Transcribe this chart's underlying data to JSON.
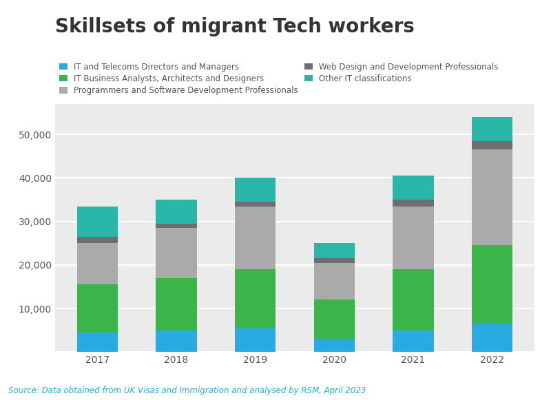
{
  "title": "Skillsets of migrant Tech workers",
  "years": [
    "2017",
    "2018",
    "2019",
    "2020",
    "2021",
    "2022"
  ],
  "categories": [
    "IT and Telecoms Directors and Managers",
    "IT Business Analysts, Architects and Designers",
    "Programmers and Software Development Professionals",
    "Web Design and Development Professionals",
    "Other IT classifications"
  ],
  "colors": [
    "#29ABE2",
    "#39B54A",
    "#AAAAAA",
    "#6D6E71",
    "#29B5A8"
  ],
  "values": {
    "IT and Telecoms Directors and Managers": [
      4500,
      5000,
      5500,
      3000,
      5000,
      6500
    ],
    "IT Business Analysts, Architects and Designers": [
      11000,
      12000,
      13500,
      9000,
      14000,
      18000
    ],
    "Programmers and Software Development Professionals": [
      9500,
      11500,
      14500,
      8500,
      14500,
      22000
    ],
    "Web Design and Development Professionals": [
      1500,
      1000,
      1000,
      1000,
      1500,
      2000
    ],
    "Other IT classifications": [
      7000,
      5500,
      5500,
      3500,
      5500,
      5500
    ]
  },
  "ylim": [
    0,
    57000
  ],
  "yticks": [
    0,
    10000,
    20000,
    30000,
    40000,
    50000
  ],
  "source_text": "Source: Data obtained from UK Visas and Immigration and analysed by RSM, April 2023",
  "background_color": "#FFFFFF",
  "grid_color": "#FFFFFF",
  "bar_width": 0.52,
  "title_fontsize": 20,
  "legend_fontsize": 8.5,
  "tick_fontsize": 10,
  "source_fontsize": 8.5,
  "source_color": "#29ABE2",
  "axis_background": "#EBEBEB"
}
